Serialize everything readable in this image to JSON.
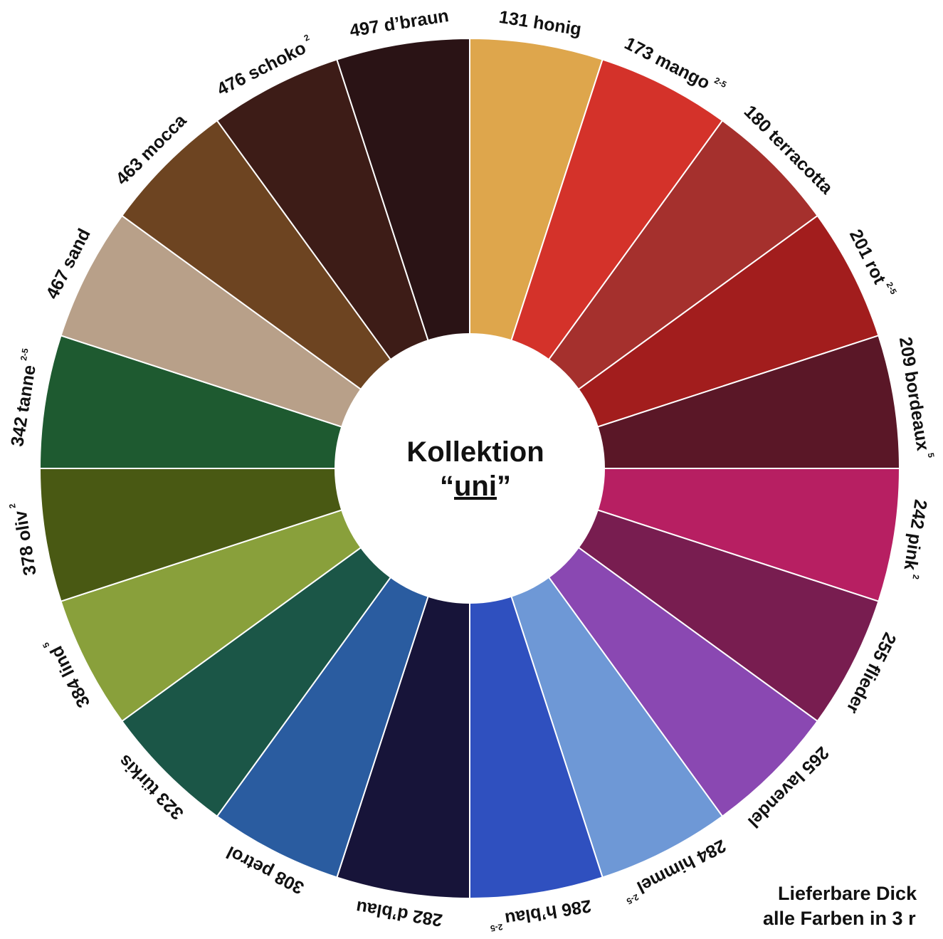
{
  "center": {
    "line1": "Kollektion",
    "quote_open": "“",
    "word": "uni",
    "quote_close": "”"
  },
  "segments": [
    {
      "label": "131 honig",
      "color": "#dea64c"
    },
    {
      "label": "173 mango",
      "note": "2-5",
      "color": "#d4322a"
    },
    {
      "label": "180 terracotta",
      "color": "#a5302d"
    },
    {
      "label": "201 rot",
      "note": "2-5",
      "color": "#a21d1d"
    },
    {
      "label": "209 bordeaux",
      "note": "5",
      "color": "#5a1727"
    },
    {
      "label": "242 pink",
      "note": "2",
      "color": "#b71f62"
    },
    {
      "label": "255 flieder",
      "color": "#781d50"
    },
    {
      "label": "265 lavendel",
      "color": "#8a48b2"
    },
    {
      "label": "284 himmel",
      "note": "2-5",
      "color": "#6e98d6"
    },
    {
      "label": "286 h’blau",
      "note": "2-5",
      "color": "#2f50bf"
    },
    {
      "label": "282 d’blau",
      "color": "#171439"
    },
    {
      "label": "308 petrol",
      "color": "#2a5ca0"
    },
    {
      "label": "323 türkis",
      "color": "#1b5647"
    },
    {
      "label": "384 lind",
      "note": "5",
      "color": "#89a03b"
    },
    {
      "label": "378 oliv",
      "note": "2",
      "color": "#495913"
    },
    {
      "label": "342 tanne",
      "note": "2-5",
      "color": "#1e5a30"
    },
    {
      "label": "467 sand",
      "color": "#b8a089"
    },
    {
      "label": "463 mocca",
      "color": "#6d4421"
    },
    {
      "label": "476 schoko",
      "note": "2",
      "color": "#3d1c17"
    },
    {
      "label": "497 d’braun",
      "color": "#2a1315"
    }
  ],
  "footer": {
    "line1": "Lieferbare Dick",
    "line2": "alle Farben in 3 r"
  }
}
